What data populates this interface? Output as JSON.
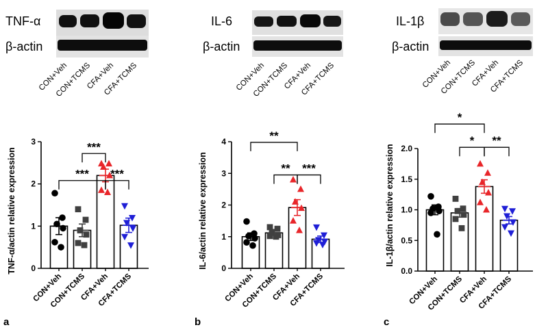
{
  "colors": {
    "con_veh": "#000000",
    "con_tcms": "#404040",
    "cfa_veh": "#e8262a",
    "cfa_tcms": "#1f1fd6",
    "axis": "#000000",
    "bar_fill": "#ffffff"
  },
  "chart_data": [
    {
      "type": "bar",
      "panel": "a",
      "blots": {
        "target": "TNF-α",
        "control": "β-actin"
      },
      "lanes": [
        "CON+Veh",
        "CON+TCMS",
        "CFA+Veh",
        "CFA+TCMS"
      ],
      "ylabel": "TNF-α/actin relative expression",
      "ylim": [
        0,
        3
      ],
      "yticks": [
        0,
        1,
        2,
        3
      ],
      "yticklabels": [
        "0",
        "1",
        "2",
        "3"
      ],
      "categories": [
        "CON+Veh",
        "CON+TCMS",
        "CFA+Veh",
        "CFA+TCMS"
      ],
      "values": [
        1.0,
        0.9,
        2.2,
        1.02
      ],
      "sem": [
        0.2,
        0.15,
        0.15,
        0.17
      ],
      "points": [
        [
          1.78,
          1.2,
          1.05,
          0.95,
          0.62,
          0.5
        ],
        [
          1.4,
          1.15,
          0.9,
          0.8,
          0.6,
          0.55
        ],
        [
          2.48,
          2.48,
          2.4,
          2.2,
          1.85,
          1.8
        ],
        [
          1.48,
          1.2,
          1.08,
          0.95,
          0.75,
          0.55
        ]
      ],
      "markers": [
        "circle",
        "square",
        "triangle-up",
        "triangle-down"
      ],
      "significance": [
        {
          "from": 0,
          "to": 2,
          "label": "***",
          "level": 2.08
        },
        {
          "from": 1,
          "to": 2,
          "label": "***",
          "level": 2.72
        },
        {
          "from": 2,
          "to": 3,
          "label": "***",
          "level": 2.08
        }
      ]
    },
    {
      "type": "bar",
      "panel": "b",
      "blots": {
        "target": "IL-6",
        "control": "β-actin"
      },
      "lanes": [
        "CON+Veh",
        "CON+TCMS",
        "CFA+Veh",
        "CFA+TCMS"
      ],
      "ylabel": "IL-6/actin relative expression",
      "ylim": [
        0,
        4
      ],
      "yticks": [
        0,
        1,
        2,
        3,
        4
      ],
      "yticklabels": [
        "0",
        "1",
        "2",
        "3",
        "4"
      ],
      "categories": [
        "CON+Veh",
        "CON+TCMS",
        "CFA+Veh",
        "CFA+TCMS"
      ],
      "values": [
        1.0,
        1.12,
        1.92,
        0.92
      ],
      "sem": [
        0.12,
        0.08,
        0.25,
        0.1
      ],
      "points": [
        [
          1.48,
          1.1,
          1.02,
          0.95,
          0.82,
          0.72
        ],
        [
          1.3,
          1.25,
          1.15,
          1.05,
          1.02,
          1.0
        ],
        [
          2.8,
          2.5,
          2.1,
          1.9,
          1.5,
          1.2
        ],
        [
          1.3,
          1.05,
          0.9,
          0.85,
          0.8,
          0.75
        ]
      ],
      "markers": [
        "circle",
        "square",
        "triangle-up",
        "triangle-down"
      ],
      "significance": [
        {
          "from": 0,
          "to": 2,
          "label": "**",
          "level": 3.98
        },
        {
          "from": 1,
          "to": 2,
          "label": "**",
          "level": 2.95
        },
        {
          "from": 2,
          "to": 3,
          "label": "***",
          "level": 2.95
        }
      ]
    },
    {
      "type": "bar",
      "panel": "c",
      "blots": {
        "target": "IL-1β",
        "control": "β-actin"
      },
      "lanes": [
        "CON+Veh",
        "CON+TCMS",
        "CFA+Veh",
        "CFA+TCMS"
      ],
      "ylabel": "IL-1β/actin relative expression",
      "ylim": [
        0,
        2
      ],
      "yticks": [
        0,
        0.5,
        1,
        1.5,
        2
      ],
      "yticklabels": [
        "0.0",
        "0.5",
        "1.0",
        "1.5",
        "2.0"
      ],
      "categories": [
        "CON+Veh",
        "CON+TCMS",
        "CFA+Veh",
        "CFA+TCMS"
      ],
      "values": [
        1.0,
        0.95,
        1.38,
        0.83
      ],
      "sem": [
        0.08,
        0.07,
        0.11,
        0.06
      ],
      "points": [
        [
          1.22,
          1.05,
          1.02,
          0.98,
          0.95,
          0.6
        ],
        [
          1.18,
          1.02,
          0.98,
          0.92,
          0.85,
          0.7
        ],
        [
          1.75,
          1.6,
          1.45,
          1.28,
          1.12,
          1.0
        ],
        [
          1.02,
          0.98,
          0.9,
          0.8,
          0.72,
          0.62
        ]
      ],
      "markers": [
        "circle",
        "square",
        "triangle-up",
        "triangle-down"
      ],
      "significance": [
        {
          "from": 0,
          "to": 2,
          "label": "*",
          "level": 2.4
        },
        {
          "from": 1,
          "to": 2,
          "label": "*",
          "level": 2.02
        },
        {
          "from": 2,
          "to": 3,
          "label": "**",
          "level": 2.02
        }
      ]
    }
  ]
}
